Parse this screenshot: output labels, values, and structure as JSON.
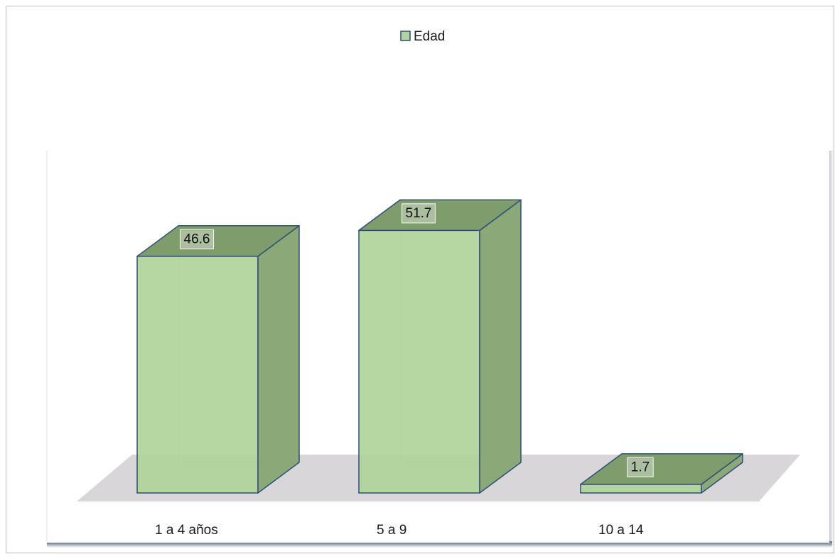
{
  "chart_data": {
    "type": "bar",
    "style": "3d-column",
    "categories": [
      "1 a 4 años",
      "5 a 9",
      "10 a 14"
    ],
    "series": [
      {
        "name": "Edad",
        "values": [
          46.6,
          51.7,
          1.7
        ]
      }
    ],
    "title": "",
    "xlabel": "",
    "ylabel": "",
    "ylim": [
      0,
      60
    ],
    "grid": false,
    "legend_position": "top-center",
    "data_labels": true
  },
  "colors": {
    "bar_front": "#b1d49a",
    "bar_side": "#8aa878",
    "bar_top": "#7e9c6c",
    "bar_edge": "#2e4f78",
    "floor": "#d8d6d8",
    "frame_shadow": "#3a5070"
  }
}
